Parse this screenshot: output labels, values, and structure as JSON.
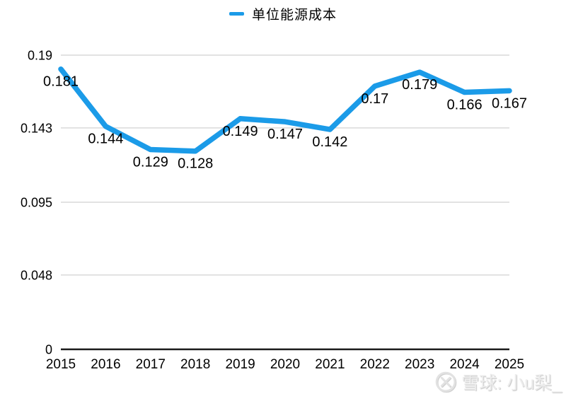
{
  "legend": {
    "label": "单位能源成本"
  },
  "watermark": {
    "text": "雪球: 小u梨_"
  },
  "chart_data": {
    "type": "line",
    "title": "单位能源成本",
    "legend_entries": [
      "单位能源成本"
    ],
    "legend_position": "top",
    "categories": [
      "2015",
      "2016",
      "2017",
      "2018",
      "2019",
      "2020",
      "2021",
      "2022",
      "2023",
      "2024",
      "2025"
    ],
    "values": [
      0.181,
      0.144,
      0.129,
      0.128,
      0.149,
      0.147,
      0.142,
      0.17,
      0.179,
      0.166,
      0.167
    ],
    "labels": [
      "0.181",
      "0.144",
      "0.129",
      "0.128",
      "0.149",
      "0.147",
      "0.142",
      "0.17",
      "0.179",
      "0.166",
      "0.167"
    ],
    "yticks": [
      "0",
      "0.048",
      "0.095",
      "0.143",
      "0.19"
    ],
    "ylim": [
      0,
      0.19
    ],
    "xlabel": "",
    "ylabel": "",
    "grid": true,
    "line_color": "#1b9be8",
    "grid_color": "#d9d9d9",
    "axis_color": "#1a1a1a",
    "label_color": "#000000"
  }
}
